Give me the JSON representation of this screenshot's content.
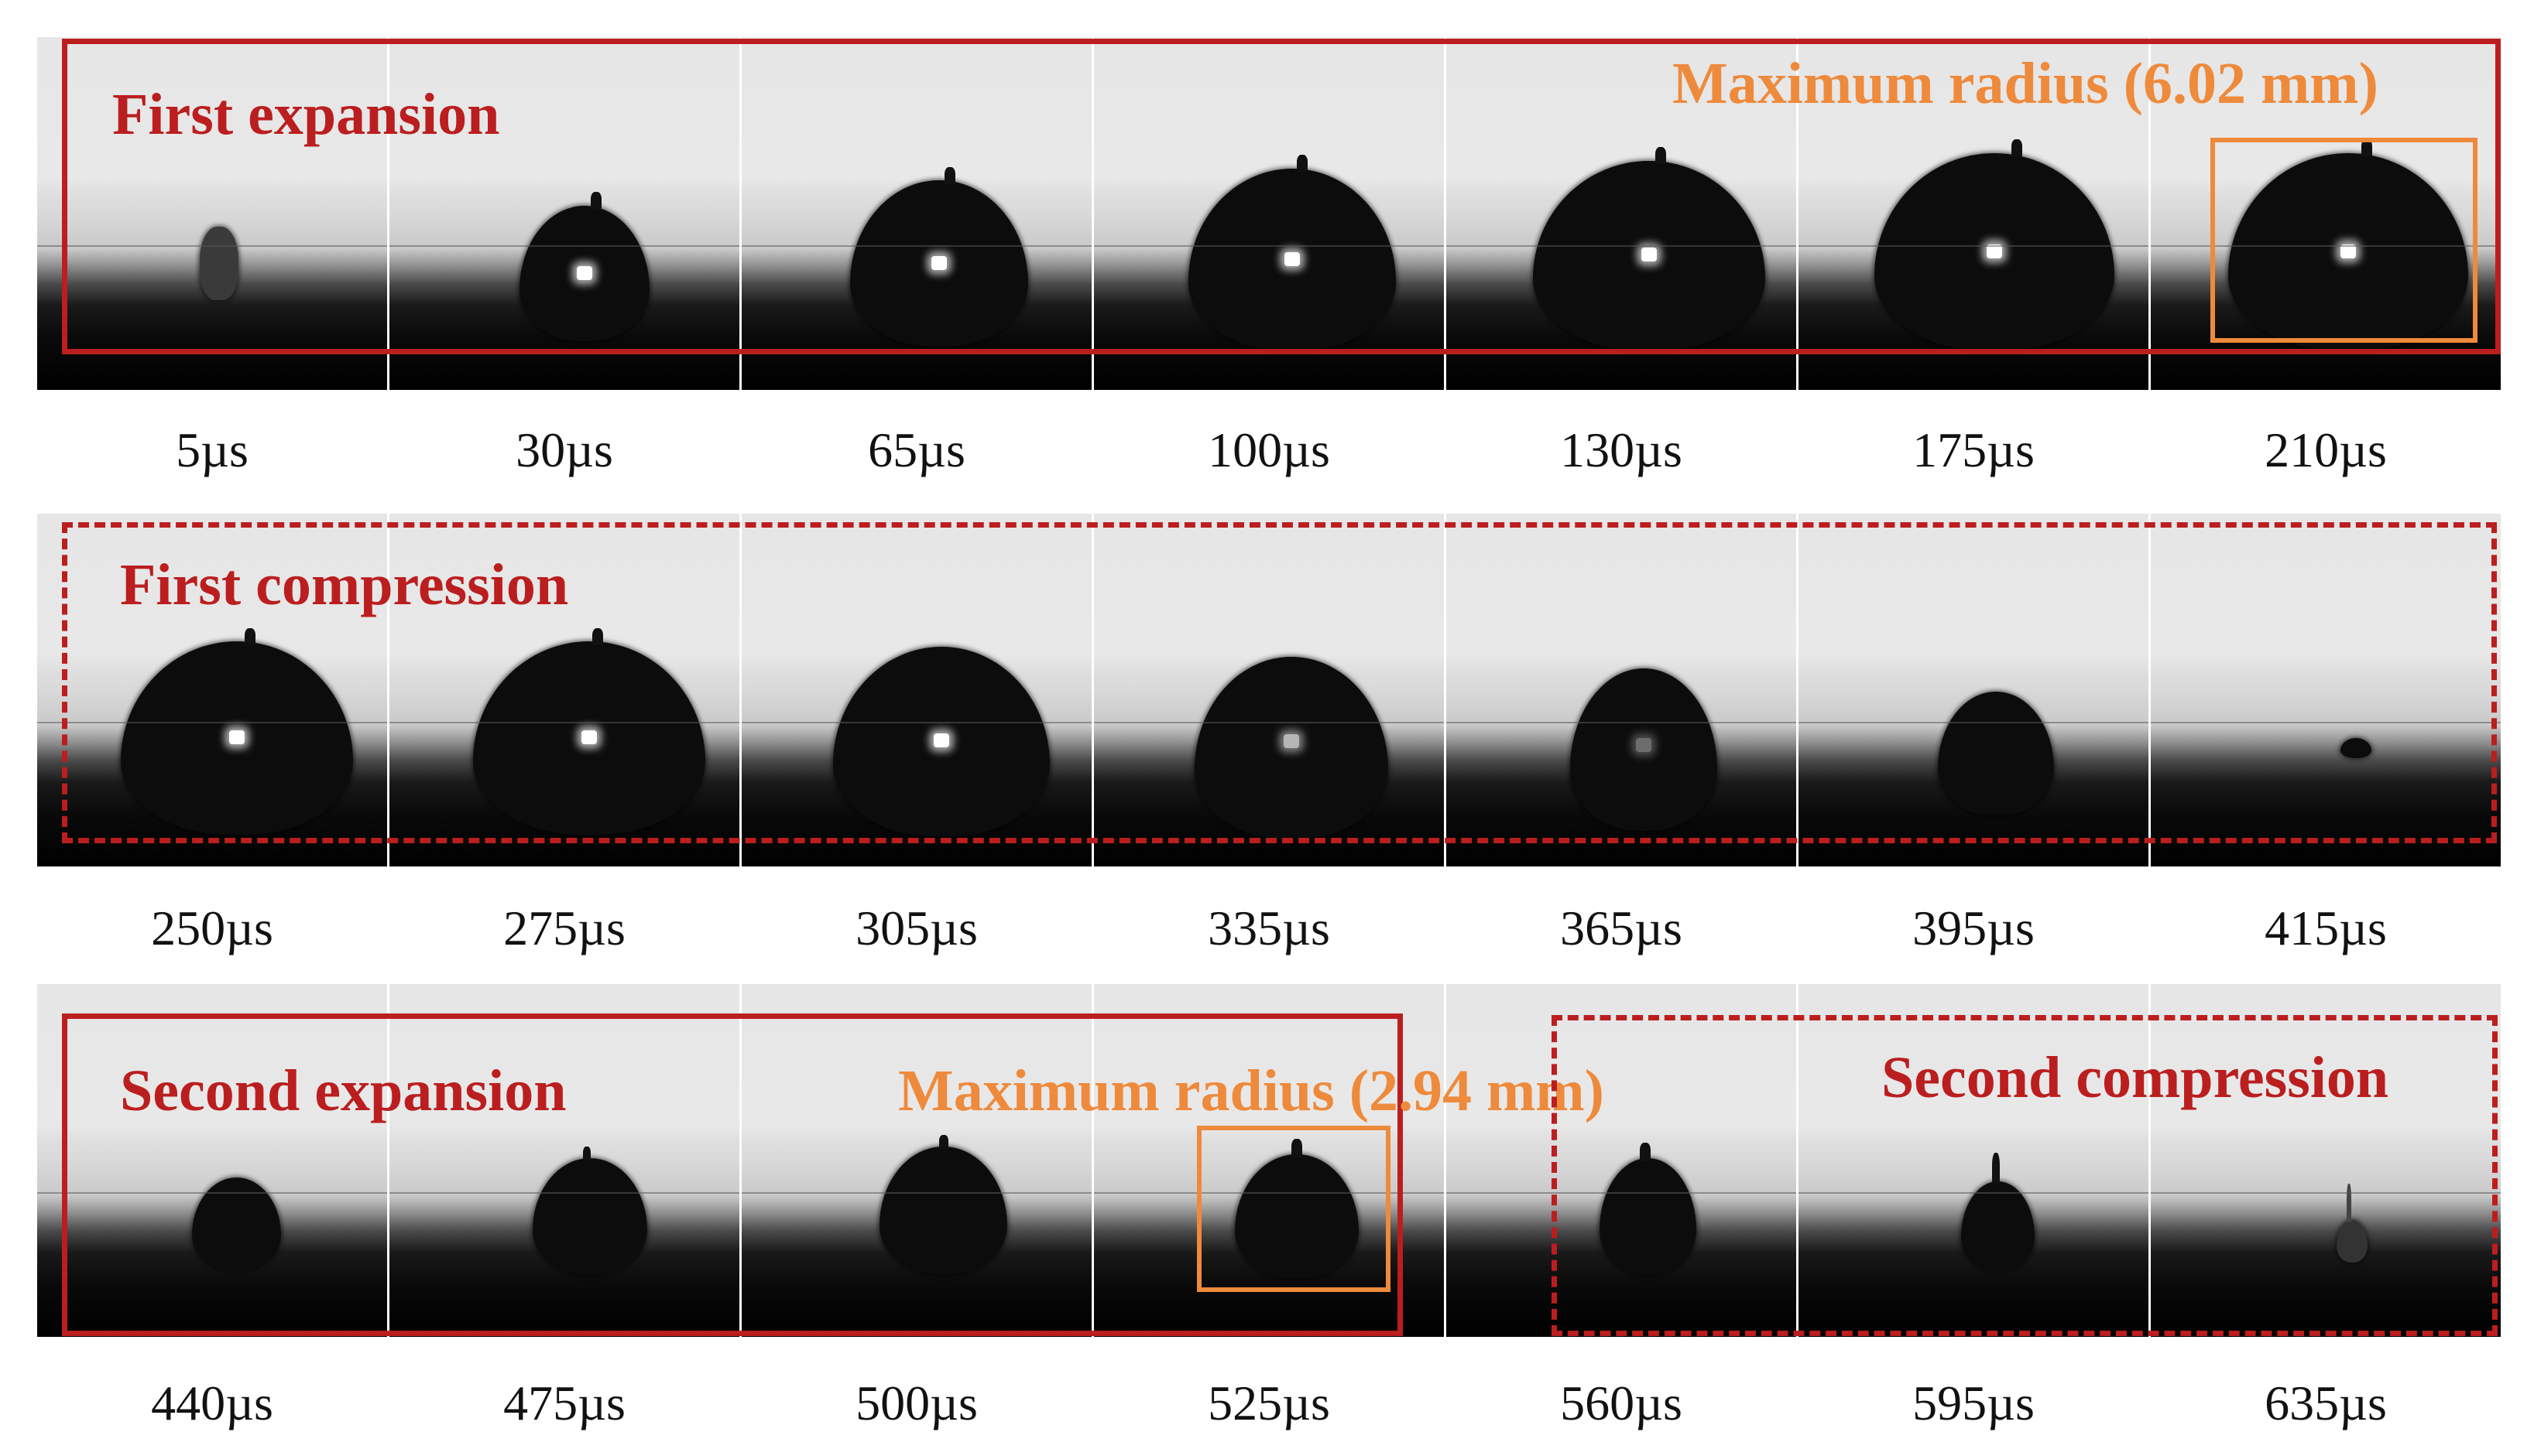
{
  "colors": {
    "expansion": "#bb1e1f",
    "compression": "#bb1e1f",
    "radius": "#ee8a3c"
  },
  "rows": [
    {
      "times": [
        "5µs",
        "30µs",
        "65µs",
        "100µs",
        "130µs",
        "175µs",
        "210µs"
      ],
      "phase": "First expansion",
      "radius_note": "Maximum radius (6.02 mm)"
    },
    {
      "times": [
        "250µs",
        "275µs",
        "305µs",
        "335µs",
        "365µs",
        "395µs",
        "415µs"
      ],
      "phase": "First compression"
    },
    {
      "times": [
        "440µs",
        "475µs",
        "500µs",
        "525µs",
        "560µs",
        "595µs",
        "635µs"
      ],
      "phase": "Second expansion",
      "radius_note": "Maximum radius (2.94 mm)",
      "phase_2": "Second compression"
    }
  ]
}
